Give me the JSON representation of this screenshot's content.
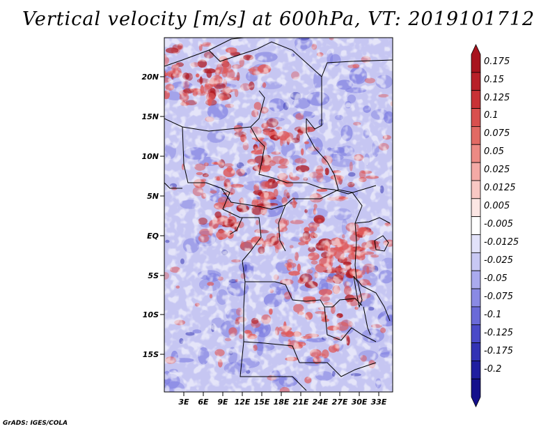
{
  "title": "Vertical velocity [m/s] at 600hPa, VT: 2019101712",
  "credit": "GrADS: IGES/COLA",
  "lat_labels": [
    "20N",
    "15N",
    "10N",
    "5N",
    "EQ",
    "5S",
    "10S",
    "15S"
  ],
  "lon_labels": [
    "3E",
    "6E",
    "9E",
    "12E",
    "15E",
    "18E",
    "21E",
    "24E",
    "27E",
    "30E",
    "33E"
  ],
  "colorbar": {
    "labels": [
      "0.175",
      "0.15",
      "0.125",
      "0.1",
      "0.075",
      "0.05",
      "0.025",
      "0.0125",
      "0.005",
      "-0.005",
      "-0.0125",
      "-0.025",
      "-0.05",
      "-0.075",
      "-0.1",
      "-0.125",
      "-0.175",
      "-0.2"
    ],
    "colors": [
      "#a8141e",
      "#b82028",
      "#c83236",
      "#d8504e",
      "#e26a64",
      "#ec8a84",
      "#f4aaa6",
      "#f8c8c4",
      "#fce6e4",
      "#ffffff",
      "#e2e2fa",
      "#c8c8f4",
      "#aaaaee",
      "#8a8ae4",
      "#6a6ad8",
      "#4a4ac8",
      "#3232b4",
      "#201ea0",
      "#14108c"
    ]
  },
  "field_colors": {
    "positive": "#e05a5a",
    "negative": "#7c7ce0",
    "strong_positive": "#b01c24",
    "strong_negative": "#3030b0"
  }
}
